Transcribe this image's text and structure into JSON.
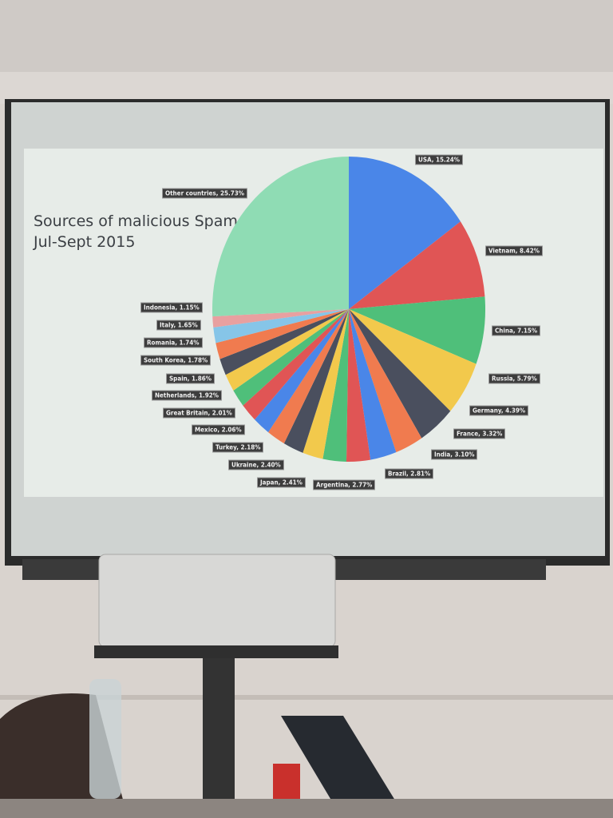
{
  "chart_data": {
    "type": "pie",
    "title": "Sources of malicious Spam\nJul-Sept 2015",
    "slices": [
      {
        "label": "USA, 15.24%",
        "value": 15.24,
        "color": "#4a86e8"
      },
      {
        "label": "Vietnam, 8.42%",
        "value": 8.42,
        "color": "#e05555"
      },
      {
        "label": "China, 7.15%",
        "value": 7.15,
        "color": "#4fbf7a"
      },
      {
        "label": "Russia, 5.79%",
        "value": 5.79,
        "color": "#f2c94c"
      },
      {
        "label": "Germany, 4.39%",
        "value": 4.39,
        "color": "#4a4f5e"
      },
      {
        "label": "France, 3.32%",
        "value": 3.32,
        "color": "#f07b4f"
      },
      {
        "label": "India, 3.10%",
        "value": 3.1,
        "color": "#4a86e8"
      },
      {
        "label": "Brazil, 2.81%",
        "value": 2.81,
        "color": "#e05555"
      },
      {
        "label": "Argentina, 2.77%",
        "value": 2.77,
        "color": "#4fbf7a"
      },
      {
        "label": "Japan, 2.41%",
        "value": 2.41,
        "color": "#f2c94c"
      },
      {
        "label": "Ukraine, 2.40%",
        "value": 2.4,
        "color": "#4a4f5e"
      },
      {
        "label": "Turkey, 2.18%",
        "value": 2.18,
        "color": "#f07b4f"
      },
      {
        "label": "Mexico, 2.06%",
        "value": 2.06,
        "color": "#4a86e8"
      },
      {
        "label": "Great Britain, 2.01%",
        "value": 2.01,
        "color": "#e05555"
      },
      {
        "label": "Netherlands, 1.92%",
        "value": 1.92,
        "color": "#4fbf7a"
      },
      {
        "label": "Spain, 1.86%",
        "value": 1.86,
        "color": "#f2c94c"
      },
      {
        "label": "South Korea, 1.78%",
        "value": 1.78,
        "color": "#4a4f5e"
      },
      {
        "label": "Romania, 1.74%",
        "value": 1.74,
        "color": "#f07b4f"
      },
      {
        "label": "Italy, 1.65%",
        "value": 1.65,
        "color": "#86c5e8"
      },
      {
        "label": "Indonesia, 1.15%",
        "value": 1.15,
        "color": "#e8a0a0"
      },
      {
        "label": "Other countries, 25.73%",
        "value": 25.73,
        "color": "#8fdcb4"
      }
    ],
    "legend": "none"
  }
}
